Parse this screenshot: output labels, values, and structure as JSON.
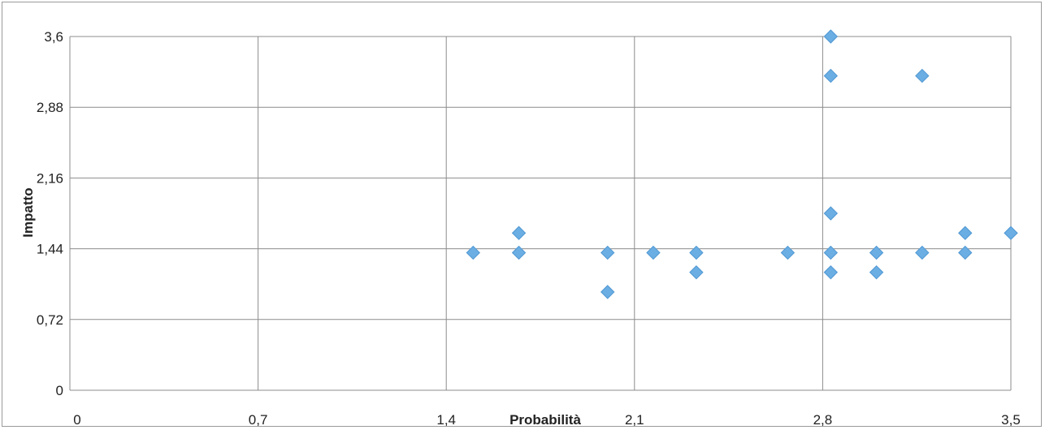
{
  "chart_data": {
    "type": "scatter",
    "title": "",
    "xlabel": "Probabilità",
    "ylabel": "Impatto",
    "xlim": [
      0,
      3.5
    ],
    "ylim": [
      0,
      3.6
    ],
    "x_ticks": [
      "0",
      "0,7",
      "1,4",
      "2,1",
      "2,8",
      "3,5"
    ],
    "x_tick_values": [
      0,
      0.7,
      1.4,
      2.1,
      2.8,
      3.5
    ],
    "y_ticks": [
      "0",
      "0,72",
      "1,44",
      "2,16",
      "2,88",
      "3,6"
    ],
    "y_tick_values": [
      0,
      0.72,
      1.44,
      2.16,
      2.88,
      3.6
    ],
    "grid": true,
    "legend": "none",
    "marker": "diamond",
    "marker_color": "#6aaee3",
    "series": [
      {
        "points": [
          {
            "x": 1.5,
            "y": 1.4
          },
          {
            "x": 1.67,
            "y": 1.6
          },
          {
            "x": 1.67,
            "y": 1.4
          },
          {
            "x": 2.0,
            "y": 1.4
          },
          {
            "x": 2.0,
            "y": 1.0
          },
          {
            "x": 2.17,
            "y": 1.4
          },
          {
            "x": 2.33,
            "y": 1.4
          },
          {
            "x": 2.33,
            "y": 1.2
          },
          {
            "x": 2.67,
            "y": 1.4
          },
          {
            "x": 2.83,
            "y": 3.6
          },
          {
            "x": 2.83,
            "y": 3.2
          },
          {
            "x": 2.83,
            "y": 1.8
          },
          {
            "x": 2.83,
            "y": 1.4
          },
          {
            "x": 2.83,
            "y": 1.2
          },
          {
            "x": 3.0,
            "y": 1.4
          },
          {
            "x": 3.0,
            "y": 1.2
          },
          {
            "x": 3.17,
            "y": 3.2
          },
          {
            "x": 3.17,
            "y": 1.4
          },
          {
            "x": 3.33,
            "y": 1.6
          },
          {
            "x": 3.33,
            "y": 1.4
          },
          {
            "x": 3.5,
            "y": 1.6
          }
        ]
      }
    ]
  }
}
